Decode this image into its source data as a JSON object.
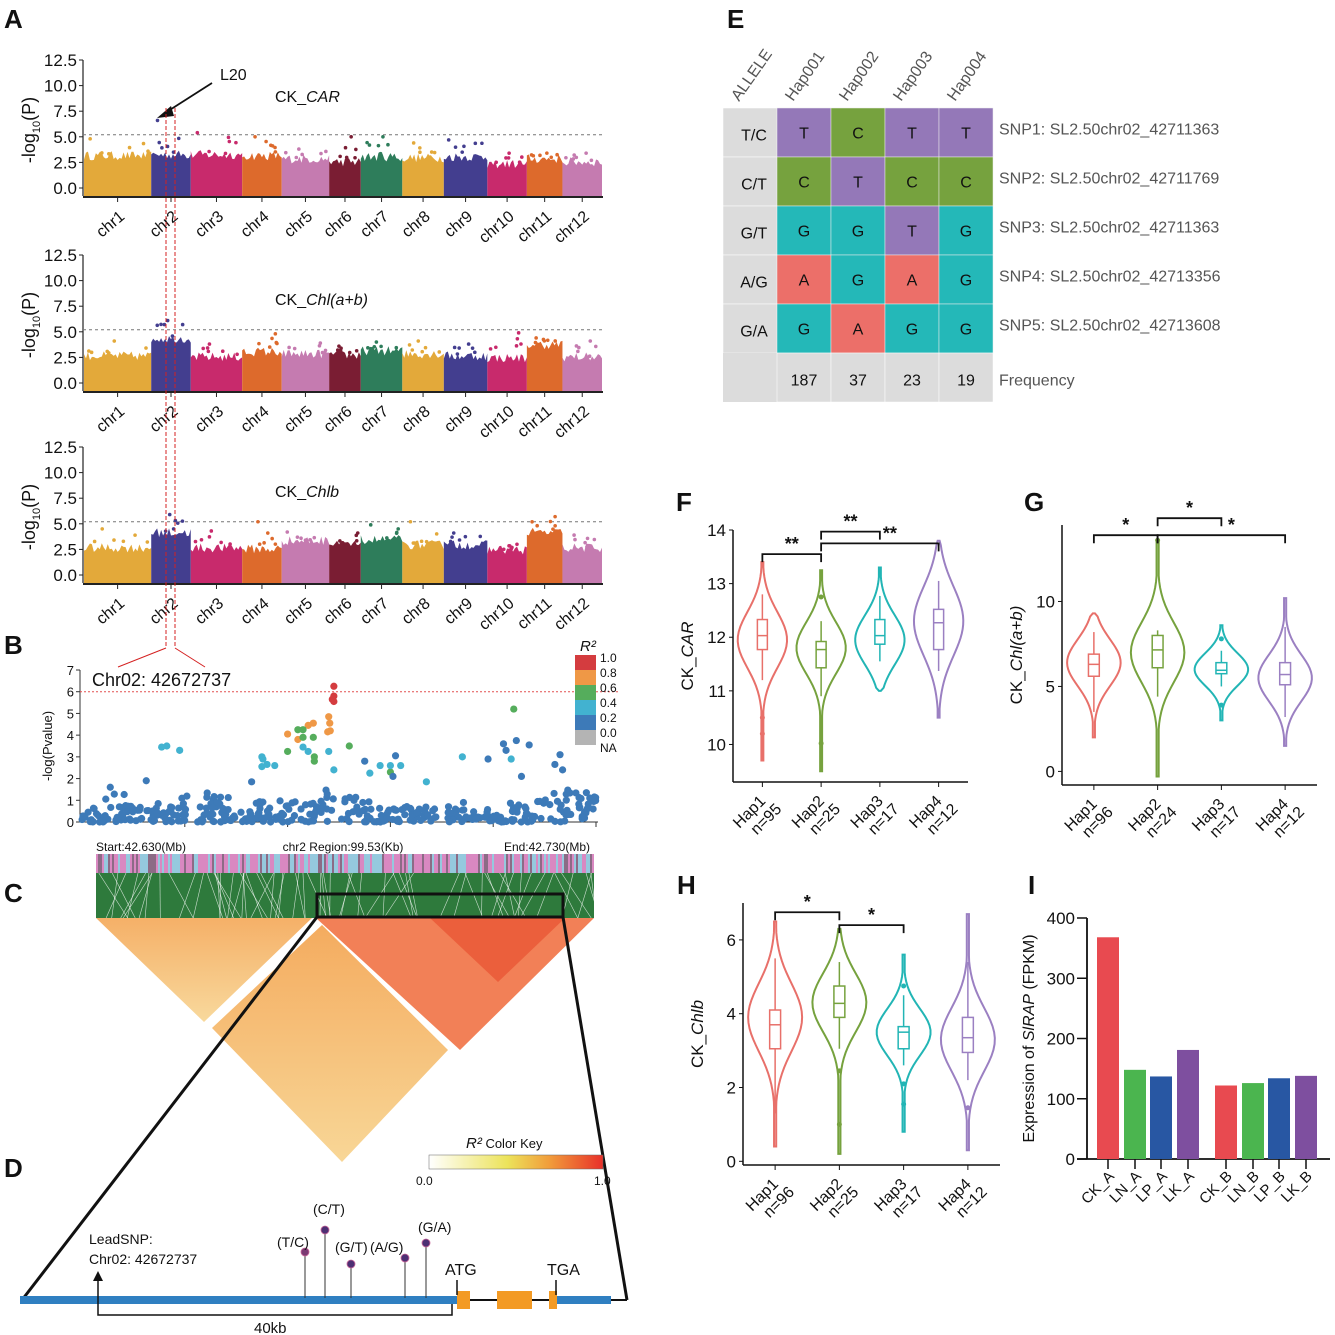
{
  "panels": {
    "A": "A",
    "B": "B",
    "C": "C",
    "D": "D",
    "E": "E",
    "F": "F",
    "G": "G",
    "H": "H",
    "I": "I"
  },
  "manhattan": {
    "ylabel": "-log10(P)",
    "yticks": [
      "12.5",
      "10.0",
      "7.5",
      "5.0",
      "2.5",
      "0.0"
    ],
    "ylim": [
      0,
      12.5
    ],
    "threshold": 5.2,
    "chromosomes": [
      "chr1",
      "chr2",
      "chr3",
      "chr4",
      "chr5",
      "chr6",
      "chr7",
      "chr8",
      "chr9",
      "chr10",
      "chr11",
      "chr12"
    ],
    "chrom_colors": [
      "#e3a93a",
      "#433e8f",
      "#c82a6c",
      "#dd6a2c",
      "#c57bb0",
      "#7a1d33",
      "#2e7d5b",
      "#e3a93a",
      "#433e8f",
      "#c82a6c",
      "#dd6a2c",
      "#c57bb0"
    ],
    "annotation": "L20",
    "traits": [
      {
        "prefix": "CK_",
        "italic": "CAR",
        "baseline": [
          3.2,
          3.3,
          3.3,
          3.2,
          2.9,
          2.6,
          3.1,
          3.0,
          3.1,
          2.4,
          2.9,
          2.6
        ],
        "peaks": [
          4.8,
          6.6,
          5.4,
          5.0,
          3.8,
          5.0,
          5.0,
          4.4,
          4.7,
          3.4,
          3.4,
          3.4
        ]
      },
      {
        "prefix": "CK_",
        "italic": "Chl(a+b)",
        "baseline": [
          2.7,
          4.4,
          2.6,
          3.1,
          2.9,
          2.8,
          3.2,
          2.9,
          2.7,
          2.5,
          3.8,
          2.6
        ],
        "peaks": [
          4.1,
          6.1,
          3.8,
          4.8,
          3.9,
          3.6,
          4.0,
          4.1,
          3.8,
          4.9,
          4.4,
          4.1
        ]
      },
      {
        "prefix": "CK_",
        "italic": "Chlb",
        "baseline": [
          2.7,
          4.2,
          2.7,
          2.6,
          3.4,
          3.0,
          3.5,
          3.0,
          3.0,
          2.5,
          4.2,
          2.7
        ],
        "peaks": [
          4.5,
          5.9,
          4.3,
          5.2,
          4.2,
          4.1,
          4.9,
          5.2,
          4.1,
          3.0,
          5.7,
          3.9
        ]
      }
    ]
  },
  "regional": {
    "label": "Chr02: 42672737",
    "ylabel": "-log(Pvalue)",
    "yticks": [
      "0",
      "1",
      "2",
      "3",
      "4",
      "5",
      "6",
      "7"
    ],
    "ylim": [
      0,
      7
    ],
    "threshold": 6,
    "legend_title": "R²",
    "legend_ticks": [
      "1.0",
      "0.8",
      "0.6",
      "0.4",
      "0.2",
      "0.0",
      "NA"
    ],
    "legend_colors": [
      "#d43c3f",
      "#ef9846",
      "#55ad5c",
      "#42b2d0",
      "#3d7ab8",
      "#b4b4b4"
    ],
    "highlight_points": [
      {
        "x": 0.49,
        "y": 6.25,
        "c": 0
      },
      {
        "x": 0.49,
        "y": 5.8,
        "c": 0
      },
      {
        "x": 0.49,
        "y": 5.55,
        "c": 0
      },
      {
        "x": 0.487,
        "y": 5.65,
        "c": 0
      },
      {
        "x": 0.48,
        "y": 4.85,
        "c": 1
      },
      {
        "x": 0.482,
        "y": 4.55,
        "c": 1
      },
      {
        "x": 0.483,
        "y": 4.2,
        "c": 1
      },
      {
        "x": 0.478,
        "y": 4.15,
        "c": 1
      },
      {
        "x": 0.45,
        "y": 4.55,
        "c": 1
      },
      {
        "x": 0.44,
        "y": 4.45,
        "c": 1
      },
      {
        "x": 0.42,
        "y": 3.8,
        "c": 1
      },
      {
        "x": 0.4,
        "y": 4.05,
        "c": 1
      },
      {
        "x": 0.42,
        "y": 4.25,
        "c": 2
      },
      {
        "x": 0.43,
        "y": 4.25,
        "c": 2
      },
      {
        "x": 0.45,
        "y": 3.9,
        "c": 2
      },
      {
        "x": 0.43,
        "y": 3.9,
        "c": 2
      },
      {
        "x": 0.4,
        "y": 3.25,
        "c": 2
      },
      {
        "x": 0.52,
        "y": 3.5,
        "c": 2
      },
      {
        "x": 0.452,
        "y": 3.0,
        "c": 2
      },
      {
        "x": 0.452,
        "y": 2.8,
        "c": 2
      },
      {
        "x": 0.6,
        "y": 2.3,
        "c": 2
      },
      {
        "x": 0.84,
        "y": 5.2,
        "c": 2
      },
      {
        "x": 0.155,
        "y": 3.45,
        "c": 3
      },
      {
        "x": 0.165,
        "y": 3.5,
        "c": 3
      },
      {
        "x": 0.19,
        "y": 3.3,
        "c": 3
      },
      {
        "x": 0.35,
        "y": 3.0,
        "c": 3
      },
      {
        "x": 0.352,
        "y": 2.9,
        "c": 3
      },
      {
        "x": 0.36,
        "y": 2.65,
        "c": 3
      },
      {
        "x": 0.375,
        "y": 2.6,
        "c": 3
      },
      {
        "x": 0.35,
        "y": 2.55,
        "c": 3
      },
      {
        "x": 0.43,
        "y": 3.45,
        "c": 3
      },
      {
        "x": 0.44,
        "y": 3.25,
        "c": 3
      },
      {
        "x": 0.48,
        "y": 3.25,
        "c": 3
      },
      {
        "x": 0.49,
        "y": 2.4,
        "c": 3
      },
      {
        "x": 0.56,
        "y": 2.25,
        "c": 3
      },
      {
        "x": 0.58,
        "y": 2.6,
        "c": 3
      },
      {
        "x": 0.6,
        "y": 2.6,
        "c": 3
      },
      {
        "x": 0.62,
        "y": 2.6,
        "c": 3
      },
      {
        "x": 0.67,
        "y": 1.85,
        "c": 3
      },
      {
        "x": 0.74,
        "y": 3.0,
        "c": 3
      },
      {
        "x": 0.835,
        "y": 2.9,
        "c": 3
      },
      {
        "x": 0.55,
        "y": 2.8,
        "c": 4
      },
      {
        "x": 0.61,
        "y": 3.05,
        "c": 4
      },
      {
        "x": 0.605,
        "y": 2.1,
        "c": 4
      },
      {
        "x": 0.79,
        "y": 2.9,
        "c": 4
      },
      {
        "x": 0.82,
        "y": 3.6,
        "c": 4
      },
      {
        "x": 0.825,
        "y": 3.3,
        "c": 4
      },
      {
        "x": 0.845,
        "y": 3.75,
        "c": 4
      },
      {
        "x": 0.87,
        "y": 3.55,
        "c": 4
      },
      {
        "x": 0.855,
        "y": 2.1,
        "c": 4
      },
      {
        "x": 0.93,
        "y": 3.1,
        "c": 4
      },
      {
        "x": 0.92,
        "y": 2.65,
        "c": 4
      },
      {
        "x": 0.935,
        "y": 2.4,
        "c": 4
      },
      {
        "x": 0.125,
        "y": 1.9,
        "c": 4
      },
      {
        "x": 0.055,
        "y": 1.6,
        "c": 4
      },
      {
        "x": 0.33,
        "y": 1.85,
        "c": 4
      }
    ]
  },
  "ld": {
    "start": "Start:42.630(Mb)",
    "region": "chr2 Region:99.53(Kb)",
    "end": "End:42.730(Mb)",
    "key_title_italic": "R²",
    "key_title": " Color Key",
    "key_min": "0.0",
    "key_max": "1.0"
  },
  "gene": {
    "lead_snp_line1": "LeadSNP:",
    "lead_snp_line2": "Chr02: 42672737",
    "distance": "40kb",
    "atg": "ATG",
    "tga": "TGA",
    "snps": [
      "(T/C)",
      "(C/T)",
      "(G/T)",
      "(A/G)",
      "(G/A)"
    ]
  },
  "haplotype_table": {
    "header": [
      "ALLELE",
      "Hap001",
      "Hap002",
      "Hap003",
      "Hap004"
    ],
    "rows": [
      {
        "allele": "T/C",
        "cells": [
          "T",
          "C",
          "T",
          "T"
        ],
        "snp": "SNP1: SL2.50chr02_42711363"
      },
      {
        "allele": "C/T",
        "cells": [
          "C",
          "T",
          "C",
          "C"
        ],
        "snp": "SNP2: SL2.50chr02_42711769"
      },
      {
        "allele": "G/T",
        "cells": [
          "G",
          "G",
          "T",
          "G"
        ],
        "snp": "SNP3: SL2.50chr02_42711363"
      },
      {
        "allele": "A/G",
        "cells": [
          "A",
          "G",
          "A",
          "G"
        ],
        "snp": "SNP4: SL2.50chr02_42713356"
      },
      {
        "allele": "G/A",
        "cells": [
          "G",
          "A",
          "G",
          "G"
        ],
        "snp": "SNP5: SL2.50chr02_42713608"
      }
    ],
    "frequency": [
      "187",
      "37",
      "23",
      "19"
    ],
    "frequency_label": "Frequency",
    "base_colors": {
      "T": "#9478b8",
      "C": "#76a23e",
      "G": "#24b8b8",
      "A": "#ec6f69"
    },
    "gray": "#dcdcdc"
  },
  "chart_data": [
    {
      "type": "violin",
      "panel": "F",
      "ylabel_prefix": "CK_",
      "ylabel_italic": "CAR",
      "ylim": [
        9.3,
        14
      ],
      "yticks": [
        10,
        11,
        12,
        13,
        14
      ],
      "categories": [
        "Hap1",
        "Hap2",
        "Hap3",
        "Hap4"
      ],
      "n": [
        "n=95",
        "n=25",
        "n=17",
        "n=12"
      ],
      "colors": [
        "#e8706a",
        "#76a23e",
        "#22b5b5",
        "#9b80c2"
      ],
      "groups": [
        {
          "min": 9.7,
          "q1": 11.77,
          "median": 12.03,
          "q3": 12.33,
          "max": 13.4,
          "mode": 11.95,
          "wmin": 11.2,
          "wmax": 12.8,
          "outliers": [
            10.5,
            10.2
          ]
        },
        {
          "min": 9.5,
          "q1": 11.43,
          "median": 11.77,
          "q3": 11.92,
          "max": 13.25,
          "mode": 11.8,
          "wmin": 10.9,
          "wmax": 12.3,
          "outliers": [
            12.75,
            10.02
          ]
        },
        {
          "min": 11.0,
          "q1": 11.87,
          "median": 12.03,
          "q3": 12.33,
          "max": 13.3,
          "mode": 11.95,
          "wmin": 11.55,
          "wmax": 12.77,
          "outliers": []
        },
        {
          "min": 10.5,
          "q1": 11.77,
          "median": 12.27,
          "q3": 12.52,
          "max": 13.8,
          "mode": 12.3,
          "wmin": 11.37,
          "wmax": 13.05,
          "outliers": []
        }
      ],
      "significance": [
        {
          "from": 0,
          "to": 1,
          "label": "**",
          "y": 13.55
        },
        {
          "from": 1,
          "to": 2,
          "label": "**",
          "y": 13.97
        },
        {
          "from": 1,
          "to": 3,
          "label": "**",
          "y": 13.75
        }
      ]
    },
    {
      "type": "violin",
      "panel": "G",
      "ylabel_prefix": "CK_",
      "ylabel_italic": "Chl(a+b)",
      "ylim": [
        -0.8,
        14.5
      ],
      "yticks": [
        0,
        5,
        10
      ],
      "categories": [
        "Hap1",
        "Hap2",
        "Hap3",
        "Hap4"
      ],
      "n": [
        "n=96",
        "n=24",
        "n=17",
        "n=12"
      ],
      "colors": [
        "#e8706a",
        "#76a23e",
        "#22b5b5",
        "#9b80c2"
      ],
      "groups": [
        {
          "min": 2.0,
          "q1": 5.6,
          "median": 6.3,
          "q3": 6.9,
          "max": 9.3,
          "mode": 6.4,
          "wmin": 3.5,
          "wmax": 8.2,
          "outliers": []
        },
        {
          "min": -0.3,
          "q1": 6.1,
          "median": 7.15,
          "q3": 8.0,
          "max": 13.6,
          "mode": 7.0,
          "wmin": 4.4,
          "wmax": 8.3,
          "outliers": [
            13.6
          ]
        },
        {
          "min": 3.0,
          "q1": 5.75,
          "median": 5.95,
          "q3": 6.4,
          "max": 8.6,
          "mode": 6.0,
          "wmin": 5.0,
          "wmax": 7.1,
          "outliers": [
            7.8,
            3.9
          ]
        },
        {
          "min": 1.5,
          "q1": 5.1,
          "median": 5.7,
          "q3": 6.4,
          "max": 10.2,
          "mode": 5.5,
          "wmin": 3.2,
          "wmax": 8.5,
          "outliers": []
        }
      ],
      "significance": [
        {
          "from": 0,
          "to": 1,
          "label": "*",
          "y": 13.9
        },
        {
          "from": 1,
          "to": 2,
          "label": "*",
          "y": 14.9
        },
        {
          "from": 1,
          "to": 3,
          "label": "*",
          "y": 13.9
        }
      ]
    },
    {
      "type": "violin",
      "panel": "H",
      "ylabel_prefix": "CK_",
      "ylabel_italic": "Chlb",
      "ylim": [
        -0.1,
        7
      ],
      "yticks": [
        0,
        2,
        4,
        6
      ],
      "categories": [
        "Hap1",
        "Hap2",
        "Hap3",
        "Hap4"
      ],
      "n": [
        "n=96",
        "n=25",
        "n=17",
        "n=12"
      ],
      "colors": [
        "#e8706a",
        "#76a23e",
        "#22b5b5",
        "#9b80c2"
      ],
      "groups": [
        {
          "min": 0.4,
          "q1": 3.05,
          "median": 3.7,
          "q3": 4.1,
          "max": 6.5,
          "mode": 3.9,
          "wmin": 1.3,
          "wmax": 5.5,
          "outliers": []
        },
        {
          "min": 0.2,
          "q1": 3.9,
          "median": 4.28,
          "q3": 4.75,
          "max": 6.3,
          "mode": 4.3,
          "wmin": 3.05,
          "wmax": 5.4,
          "outliers": [
            2.45,
            1.0
          ]
        },
        {
          "min": 0.8,
          "q1": 3.05,
          "median": 3.5,
          "q3": 3.65,
          "max": 5.6,
          "mode": 3.5,
          "wmin": 2.6,
          "wmax": 4.5,
          "outliers": [
            4.75,
            2.1,
            1.55
          ]
        },
        {
          "min": 0.3,
          "q1": 2.95,
          "median": 3.35,
          "q3": 3.9,
          "max": 6.7,
          "mode": 3.3,
          "wmin": 2.2,
          "wmax": 5.4,
          "outliers": [
            1.45
          ]
        }
      ],
      "significance": [
        {
          "from": 0,
          "to": 1,
          "label": "*",
          "y": 6.75
        },
        {
          "from": 1,
          "to": 2,
          "label": "*",
          "y": 6.4
        }
      ]
    },
    {
      "type": "bar",
      "panel": "I",
      "ylabel_prefix": "Expression of ",
      "ylabel_italic": "SlRAP",
      "ylabel_suffix": " (FPKM)",
      "ylim": [
        0,
        400
      ],
      "yticks": [
        0,
        100,
        200,
        300,
        400
      ],
      "categories": [
        "CK_A",
        "LN_A",
        "LP_A",
        "LK_A",
        "CK_B",
        "LN_B",
        "LP_B",
        "LK_B"
      ],
      "values": [
        368,
        148,
        137,
        181,
        122,
        126,
        134,
        138
      ],
      "colors": [
        "#e84a50",
        "#4bb54f",
        "#2857a3",
        "#7e4f9f",
        "#e84a50",
        "#4bb54f",
        "#2857a3",
        "#7e4f9f"
      ]
    }
  ]
}
